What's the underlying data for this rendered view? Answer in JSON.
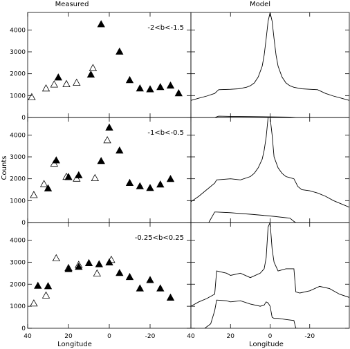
{
  "figure": {
    "col_titles": [
      "Measured",
      "Model"
    ],
    "ylabel": "Counts",
    "xlabel": "Longitude"
  },
  "chart_data": {
    "type": "scatter",
    "xlim": [
      40,
      -40
    ],
    "ylim": [
      0,
      4800
    ],
    "x_ticks": [
      40,
      20,
      0,
      -20
    ],
    "y_ticks": [
      0,
      1000,
      2000,
      3000,
      4000
    ],
    "panels": [
      {
        "column": "Measured",
        "annotation": "-2<b<-1.5",
        "series": [
          {
            "marker": "open-triangle",
            "x": [
              38,
              31,
              27,
              21,
              16,
              8
            ],
            "y": [
              920,
              1320,
              1500,
              1520,
              1580,
              2250
            ]
          },
          {
            "marker": "filled-triangle",
            "x": [
              25,
              9,
              4,
              -5,
              -10,
              -15,
              -20,
              -25,
              -30,
              -34
            ],
            "y": [
              1820,
              1950,
              4250,
              3000,
              1700,
              1320,
              1280,
              1380,
              1450,
              1100
            ]
          }
        ]
      },
      {
        "column": "Measured",
        "annotation": "-1<b<-0.5",
        "series": [
          {
            "marker": "open-triangle",
            "x": [
              37,
              32,
              27,
              21,
              16,
              7,
              1
            ],
            "y": [
              1250,
              1750,
              2680,
              2080,
              2000,
              2020,
              3750
            ]
          },
          {
            "marker": "filled-triangle",
            "x": [
              30,
              26,
              20,
              15,
              4,
              0,
              -5,
              -10,
              -15,
              -20,
              -25,
              -30
            ],
            "y": [
              1550,
              2830,
              2070,
              2150,
              2800,
              4330,
              3280,
              1800,
              1650,
              1570,
              1730,
              1980
            ]
          }
        ]
      },
      {
        "column": "Measured",
        "annotation": "-0.25<b<0.25",
        "series": [
          {
            "marker": "open-triangle",
            "x": [
              37,
              31,
              26,
              20,
              15,
              6,
              -1
            ],
            "y": [
              1120,
              1480,
              3170,
              2730,
              2870,
              2480,
              3100
            ]
          },
          {
            "marker": "filled-triangle",
            "x": [
              35,
              30,
              20,
              15,
              10,
              5,
              0,
              -5,
              -10,
              -15,
              -20,
              -25,
              -30
            ],
            "y": [
              1920,
              1900,
              2680,
              2780,
              2950,
              2900,
              2980,
              2500,
              2320,
              1800,
              2180,
              1800,
              1380
            ]
          }
        ]
      },
      {
        "column": "Model",
        "series": [
          {
            "style": "line",
            "x": [
              40,
              36,
              32,
              28,
              26,
              20,
              16,
              12,
              10,
              8,
              6,
              4,
              3,
              2,
              1,
              0,
              -1,
              -2,
              -3,
              -4,
              -6,
              -8,
              -10,
              -12,
              -16,
              -20,
              -24,
              -28,
              -32,
              -36,
              -40
            ],
            "y": [
              780,
              880,
              980,
              1100,
              1270,
              1290,
              1310,
              1380,
              1450,
              1580,
              1850,
              2350,
              2850,
              3600,
              4400,
              4800,
              4400,
              3600,
              2850,
              2350,
              1850,
              1580,
              1450,
              1380,
              1310,
              1290,
              1270,
              1100,
              980,
              880,
              780
            ]
          },
          {
            "style": "line",
            "x": [
              28,
              26,
              20,
              10,
              0,
              -10,
              -13,
              -14
            ],
            "y": [
              0,
              60,
              50,
              40,
              30,
              20,
              0,
              0
            ]
          }
        ]
      },
      {
        "column": "Model",
        "series": [
          {
            "style": "line",
            "x": [
              40,
              36,
              32,
              28,
              27,
              20,
              15,
              10,
              8,
              6,
              4,
              3,
              2,
              1,
              0,
              -1,
              -2,
              -4,
              -6,
              -8,
              -10,
              -12,
              -14,
              -16,
              -20,
              -24,
              -28,
              -32,
              -36,
              -40
            ],
            "y": [
              950,
              1200,
              1500,
              1800,
              1950,
              2000,
              1950,
              2100,
              2250,
              2500,
              2900,
              3300,
              3900,
              4800,
              4800,
              4000,
              3000,
              2500,
              2250,
              2100,
              2050,
              2000,
              1650,
              1500,
              1450,
              1350,
              1200,
              1000,
              850,
              700
            ]
          },
          {
            "style": "line",
            "x": [
              31,
              28,
              27,
              20,
              10,
              0,
              -10,
              -12,
              -13,
              -14
            ],
            "y": [
              0,
              480,
              480,
              450,
              380,
              300,
              200,
              50,
              0,
              0
            ]
          }
        ]
      },
      {
        "column": "Model",
        "series": [
          {
            "style": "line",
            "x": [
              40,
              36,
              32,
              28,
              27,
              22,
              20,
              15,
              10,
              5,
              3,
              2,
              1,
              0,
              -1,
              -2,
              -4,
              -8,
              -12,
              -13,
              -15,
              -20,
              -25,
              -30,
              -35,
              -40
            ],
            "y": [
              1000,
              1200,
              1350,
              1550,
              2600,
              2500,
              2400,
              2500,
              2300,
              2500,
              2700,
              3200,
              4600,
              4800,
              3600,
              3000,
              2600,
              2700,
              2700,
              1650,
              1600,
              1700,
              1900,
              1800,
              1550,
              1400
            ]
          },
          {
            "style": "line",
            "x": [
              33,
              30,
              28,
              27,
              22,
              20,
              15,
              10,
              5,
              3,
              2,
              1,
              0,
              -1,
              -2,
              -4,
              -8,
              -12,
              -13,
              -14
            ],
            "y": [
              0,
              200,
              800,
              1280,
              1250,
              1200,
              1250,
              1100,
              1000,
              1050,
              1200,
              1150,
              1000,
              500,
              450,
              450,
              400,
              350,
              0,
              0
            ]
          }
        ]
      }
    ]
  }
}
